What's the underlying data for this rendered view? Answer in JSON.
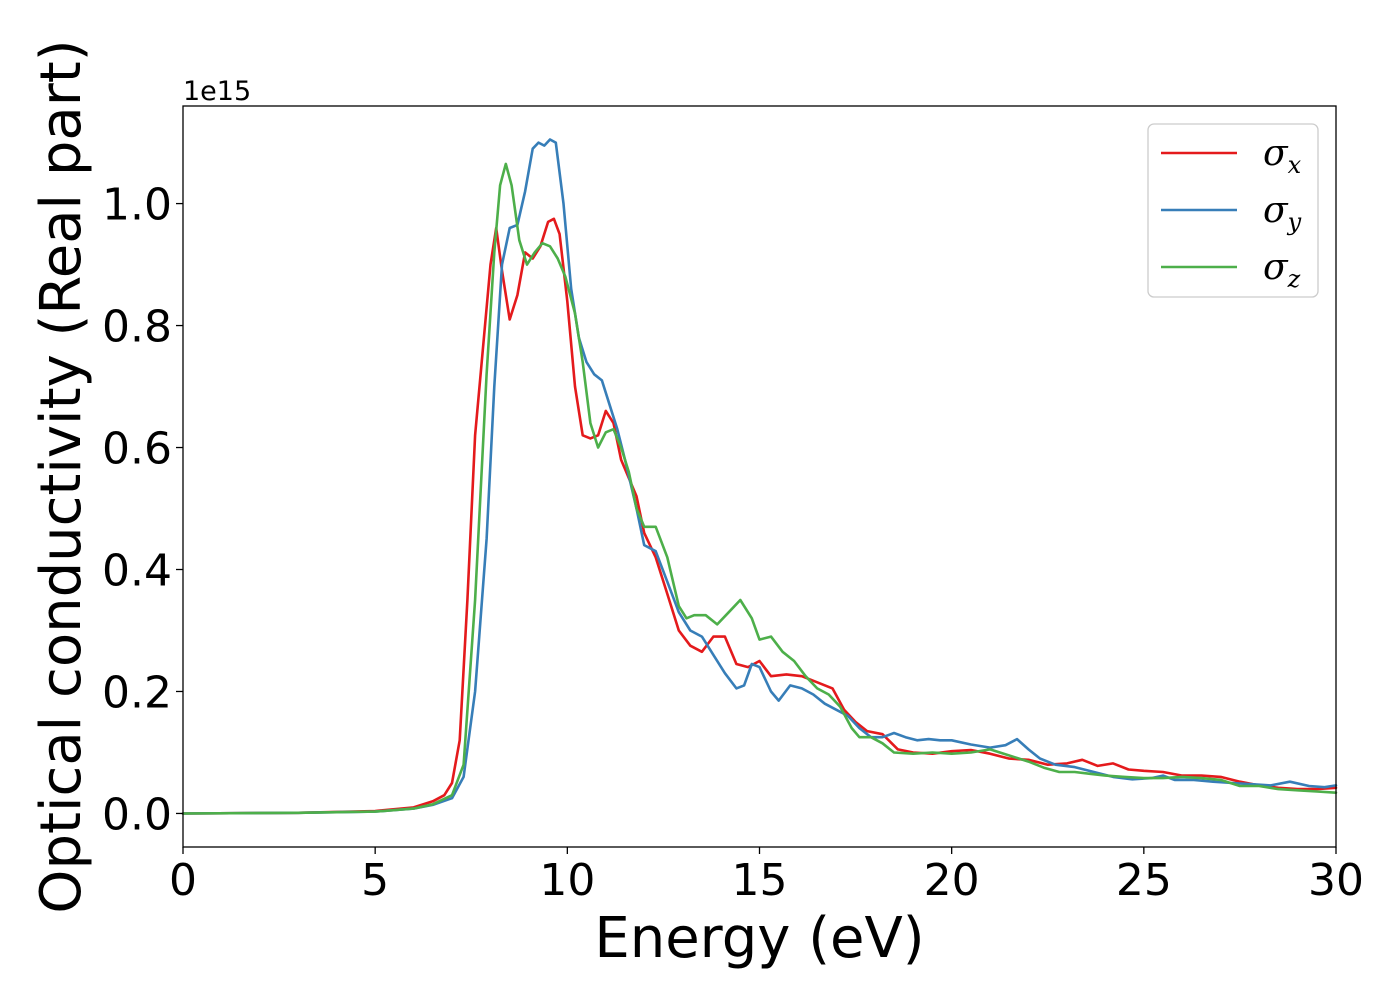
{
  "chart_data": {
    "type": "line",
    "title": "",
    "xlabel": "Energy (eV)",
    "ylabel": "Optical conductivity (Real part)",
    "y_offset_text": "1e15",
    "xlim": [
      0,
      30
    ],
    "ylim": [
      -0.055,
      1.16
    ],
    "x_ticks": [
      0,
      5,
      10,
      15,
      20,
      25,
      30
    ],
    "x_tick_labels": [
      "0",
      "5",
      "10",
      "15",
      "20",
      "25",
      "30"
    ],
    "y_ticks": [
      0.0,
      0.2,
      0.4,
      0.6,
      0.8,
      1.0
    ],
    "y_tick_labels": [
      "0.0",
      "0.2",
      "0.4",
      "0.6",
      "0.8",
      "1.0"
    ],
    "grid": false,
    "legend_position": "top-right",
    "series": [
      {
        "name": "σx",
        "legend_symbol": "σ",
        "legend_subscript": "x",
        "color": "#e41a1c",
        "points": [
          [
            0,
            0
          ],
          [
            3,
            0.001
          ],
          [
            5,
            0.004
          ],
          [
            6,
            0.01
          ],
          [
            6.5,
            0.02
          ],
          [
            6.8,
            0.03
          ],
          [
            7.0,
            0.05
          ],
          [
            7.2,
            0.12
          ],
          [
            7.4,
            0.35
          ],
          [
            7.6,
            0.62
          ],
          [
            7.8,
            0.76
          ],
          [
            8.0,
            0.9
          ],
          [
            8.15,
            0.96
          ],
          [
            8.3,
            0.89
          ],
          [
            8.5,
            0.81
          ],
          [
            8.7,
            0.85
          ],
          [
            8.9,
            0.92
          ],
          [
            9.1,
            0.91
          ],
          [
            9.3,
            0.93
          ],
          [
            9.5,
            0.97
          ],
          [
            9.65,
            0.975
          ],
          [
            9.8,
            0.95
          ],
          [
            10.0,
            0.84
          ],
          [
            10.2,
            0.7
          ],
          [
            10.4,
            0.62
          ],
          [
            10.6,
            0.615
          ],
          [
            10.8,
            0.62
          ],
          [
            11.0,
            0.66
          ],
          [
            11.2,
            0.64
          ],
          [
            11.4,
            0.58
          ],
          [
            11.6,
            0.55
          ],
          [
            11.8,
            0.52
          ],
          [
            12.0,
            0.46
          ],
          [
            12.3,
            0.42
          ],
          [
            12.6,
            0.36
          ],
          [
            12.9,
            0.3
          ],
          [
            13.2,
            0.275
          ],
          [
            13.5,
            0.265
          ],
          [
            13.8,
            0.29
          ],
          [
            14.1,
            0.29
          ],
          [
            14.4,
            0.245
          ],
          [
            14.7,
            0.24
          ],
          [
            15.0,
            0.25
          ],
          [
            15.3,
            0.225
          ],
          [
            15.7,
            0.228
          ],
          [
            16.1,
            0.225
          ],
          [
            16.5,
            0.215
          ],
          [
            16.9,
            0.205
          ],
          [
            17.2,
            0.17
          ],
          [
            17.5,
            0.15
          ],
          [
            17.8,
            0.135
          ],
          [
            18.2,
            0.13
          ],
          [
            18.6,
            0.105
          ],
          [
            19.0,
            0.1
          ],
          [
            19.5,
            0.098
          ],
          [
            20.0,
            0.102
          ],
          [
            20.5,
            0.104
          ],
          [
            21.0,
            0.098
          ],
          [
            21.5,
            0.09
          ],
          [
            22.0,
            0.088
          ],
          [
            22.5,
            0.08
          ],
          [
            23.0,
            0.082
          ],
          [
            23.4,
            0.088
          ],
          [
            23.8,
            0.078
          ],
          [
            24.2,
            0.082
          ],
          [
            24.6,
            0.072
          ],
          [
            25.0,
            0.07
          ],
          [
            25.5,
            0.068
          ],
          [
            26.0,
            0.062
          ],
          [
            26.5,
            0.062
          ],
          [
            27.0,
            0.06
          ],
          [
            27.5,
            0.052
          ],
          [
            28.0,
            0.046
          ],
          [
            28.5,
            0.042
          ],
          [
            29.0,
            0.04
          ],
          [
            29.5,
            0.04
          ],
          [
            30,
            0.042
          ]
        ]
      },
      {
        "name": "σy",
        "legend_symbol": "σ",
        "legend_subscript": "y",
        "color": "#377eb8",
        "points": [
          [
            0,
            0
          ],
          [
            3,
            0.001
          ],
          [
            5,
            0.003
          ],
          [
            6,
            0.008
          ],
          [
            6.5,
            0.014
          ],
          [
            7.0,
            0.025
          ],
          [
            7.3,
            0.06
          ],
          [
            7.6,
            0.2
          ],
          [
            7.9,
            0.45
          ],
          [
            8.1,
            0.7
          ],
          [
            8.3,
            0.9
          ],
          [
            8.5,
            0.96
          ],
          [
            8.7,
            0.965
          ],
          [
            8.9,
            1.02
          ],
          [
            9.1,
            1.09
          ],
          [
            9.25,
            1.1
          ],
          [
            9.4,
            1.095
          ],
          [
            9.55,
            1.105
          ],
          [
            9.7,
            1.1
          ],
          [
            9.9,
            1.0
          ],
          [
            10.1,
            0.86
          ],
          [
            10.3,
            0.78
          ],
          [
            10.5,
            0.74
          ],
          [
            10.7,
            0.72
          ],
          [
            10.9,
            0.71
          ],
          [
            11.1,
            0.67
          ],
          [
            11.3,
            0.63
          ],
          [
            11.5,
            0.58
          ],
          [
            11.8,
            0.5
          ],
          [
            12.0,
            0.44
          ],
          [
            12.3,
            0.43
          ],
          [
            12.6,
            0.38
          ],
          [
            12.9,
            0.33
          ],
          [
            13.2,
            0.3
          ],
          [
            13.5,
            0.29
          ],
          [
            13.8,
            0.26
          ],
          [
            14.1,
            0.23
          ],
          [
            14.4,
            0.205
          ],
          [
            14.6,
            0.21
          ],
          [
            14.8,
            0.245
          ],
          [
            15.0,
            0.24
          ],
          [
            15.3,
            0.2
          ],
          [
            15.5,
            0.185
          ],
          [
            15.8,
            0.21
          ],
          [
            16.1,
            0.205
          ],
          [
            16.4,
            0.195
          ],
          [
            16.7,
            0.18
          ],
          [
            17.0,
            0.17
          ],
          [
            17.3,
            0.16
          ],
          [
            17.6,
            0.14
          ],
          [
            17.9,
            0.125
          ],
          [
            18.2,
            0.125
          ],
          [
            18.5,
            0.132
          ],
          [
            18.8,
            0.125
          ],
          [
            19.1,
            0.12
          ],
          [
            19.4,
            0.122
          ],
          [
            19.7,
            0.12
          ],
          [
            20.0,
            0.12
          ],
          [
            20.5,
            0.113
          ],
          [
            21.0,
            0.108
          ],
          [
            21.4,
            0.112
          ],
          [
            21.7,
            0.122
          ],
          [
            22.0,
            0.105
          ],
          [
            22.3,
            0.09
          ],
          [
            22.7,
            0.08
          ],
          [
            23.2,
            0.076
          ],
          [
            23.7,
            0.068
          ],
          [
            24.2,
            0.06
          ],
          [
            24.7,
            0.056
          ],
          [
            25.2,
            0.058
          ],
          [
            25.5,
            0.062
          ],
          [
            25.8,
            0.055
          ],
          [
            26.3,
            0.055
          ],
          [
            26.8,
            0.052
          ],
          [
            27.3,
            0.05
          ],
          [
            27.8,
            0.048
          ],
          [
            28.3,
            0.046
          ],
          [
            28.8,
            0.052
          ],
          [
            29.3,
            0.045
          ],
          [
            29.7,
            0.043
          ],
          [
            30,
            0.046
          ]
        ]
      },
      {
        "name": "σz",
        "legend_symbol": "σ",
        "legend_subscript": "z",
        "color": "#4daf4a",
        "points": [
          [
            0,
            0
          ],
          [
            3,
            0.001
          ],
          [
            5,
            0.003
          ],
          [
            6,
            0.008
          ],
          [
            6.5,
            0.015
          ],
          [
            7.0,
            0.03
          ],
          [
            7.3,
            0.08
          ],
          [
            7.6,
            0.35
          ],
          [
            7.9,
            0.72
          ],
          [
            8.1,
            0.92
          ],
          [
            8.25,
            1.03
          ],
          [
            8.4,
            1.065
          ],
          [
            8.55,
            1.03
          ],
          [
            8.75,
            0.94
          ],
          [
            8.95,
            0.9
          ],
          [
            9.15,
            0.92
          ],
          [
            9.35,
            0.935
          ],
          [
            9.55,
            0.93
          ],
          [
            9.75,
            0.91
          ],
          [
            9.95,
            0.88
          ],
          [
            10.2,
            0.82
          ],
          [
            10.4,
            0.74
          ],
          [
            10.6,
            0.64
          ],
          [
            10.8,
            0.6
          ],
          [
            11.0,
            0.625
          ],
          [
            11.2,
            0.63
          ],
          [
            11.4,
            0.6
          ],
          [
            11.6,
            0.56
          ],
          [
            11.8,
            0.5
          ],
          [
            12.0,
            0.47
          ],
          [
            12.3,
            0.47
          ],
          [
            12.6,
            0.42
          ],
          [
            12.9,
            0.34
          ],
          [
            13.1,
            0.32
          ],
          [
            13.3,
            0.325
          ],
          [
            13.6,
            0.325
          ],
          [
            13.9,
            0.31
          ],
          [
            14.2,
            0.33
          ],
          [
            14.5,
            0.35
          ],
          [
            14.8,
            0.32
          ],
          [
            15.0,
            0.285
          ],
          [
            15.3,
            0.29
          ],
          [
            15.6,
            0.265
          ],
          [
            15.9,
            0.25
          ],
          [
            16.2,
            0.225
          ],
          [
            16.5,
            0.205
          ],
          [
            16.8,
            0.195
          ],
          [
            17.1,
            0.175
          ],
          [
            17.4,
            0.14
          ],
          [
            17.6,
            0.125
          ],
          [
            17.9,
            0.125
          ],
          [
            18.2,
            0.115
          ],
          [
            18.5,
            0.1
          ],
          [
            19.0,
            0.098
          ],
          [
            19.5,
            0.1
          ],
          [
            20.0,
            0.098
          ],
          [
            20.5,
            0.1
          ],
          [
            21.0,
            0.105
          ],
          [
            21.5,
            0.095
          ],
          [
            22.0,
            0.085
          ],
          [
            22.4,
            0.075
          ],
          [
            22.8,
            0.068
          ],
          [
            23.2,
            0.068
          ],
          [
            23.6,
            0.065
          ],
          [
            24.0,
            0.062
          ],
          [
            24.5,
            0.06
          ],
          [
            25.0,
            0.058
          ],
          [
            25.5,
            0.058
          ],
          [
            26.0,
            0.06
          ],
          [
            26.5,
            0.058
          ],
          [
            27.0,
            0.055
          ],
          [
            27.5,
            0.045
          ],
          [
            28.0,
            0.045
          ],
          [
            28.5,
            0.04
          ],
          [
            29.0,
            0.038
          ],
          [
            29.5,
            0.036
          ],
          [
            30,
            0.034
          ]
        ]
      }
    ]
  }
}
